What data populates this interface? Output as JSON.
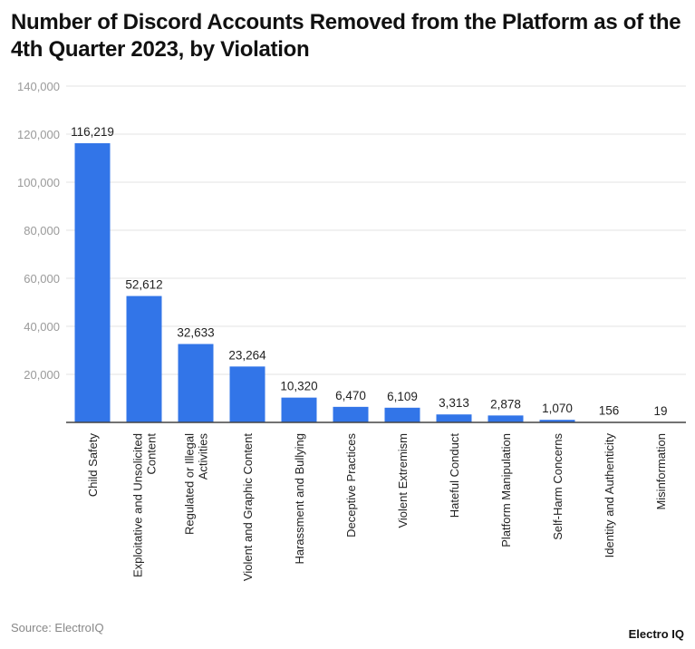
{
  "title": "Number of Discord Accounts Removed from the Platform as of the 4th Quarter 2023, by Violation",
  "source": "Source: ElectroIQ",
  "logo": "Electro IQ",
  "chart_data": {
    "type": "bar",
    "title": "Number of Discord Accounts Removed from the Platform as of the 4th Quarter 2023, by Violation",
    "categories": [
      "Child Safety",
      "Exploitative and Unsolicited Content",
      "Regulated or Illegal Activities",
      "Violent and Graphic Content",
      "Harassment and Bullying",
      "Deceptive Practices",
      "Violent Extremism",
      "Hateful Conduct",
      "Platform Manipulation",
      "Self-Harm Concerns",
      "Identity and Authenticity",
      "Misinformation"
    ],
    "category_lines": [
      [
        "Child Safety"
      ],
      [
        "Exploitative and Unsolicited",
        "Content"
      ],
      [
        "Regulated or Illegal",
        "Activities"
      ],
      [
        "Violent and Graphic Content"
      ],
      [
        "Harassment and Bullying"
      ],
      [
        "Deceptive Practices"
      ],
      [
        "Violent Extremism"
      ],
      [
        "Hateful Conduct"
      ],
      [
        "Platform Manipulation"
      ],
      [
        "Self-Harm Concerns"
      ],
      [
        "Identity and Authenticity"
      ],
      [
        "Misinformation"
      ]
    ],
    "values": [
      116219,
      52612,
      32633,
      23264,
      10320,
      6470,
      6109,
      3313,
      2878,
      1070,
      156,
      19
    ],
    "data_labels": [
      "116,219",
      "52,612",
      "32,633",
      "23,264",
      "10,320",
      "6,470",
      "6,109",
      "3,313",
      "2,878",
      "1,070",
      "156",
      "19"
    ],
    "ylim": [
      0,
      140000
    ],
    "yticks": [
      20000,
      40000,
      60000,
      80000,
      100000,
      120000,
      140000
    ],
    "ytick_labels": [
      "20,000",
      "40,000",
      "60,000",
      "80,000",
      "100,000",
      "120,000",
      "140,000"
    ],
    "xlabel": "",
    "ylabel": "",
    "grid": true,
    "bar_color": "#3275e8"
  }
}
